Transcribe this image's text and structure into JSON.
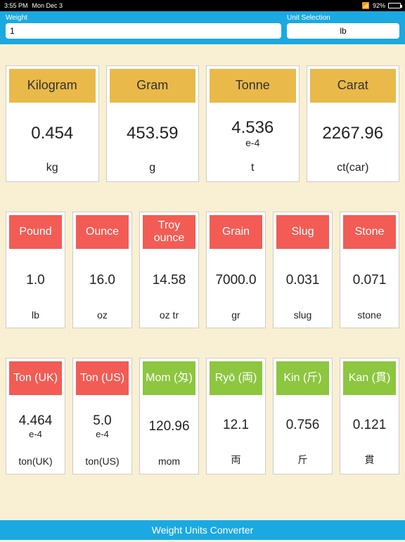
{
  "status": {
    "time": "3:55 PM",
    "date": "Mon Dec 3",
    "battery_pct": "92%"
  },
  "header": {
    "weight_label": "Weight",
    "weight_value": "1",
    "unit_label": "Unit Selection",
    "unit_value": "lb"
  },
  "colors": {
    "yellow": "#e9b949",
    "red": "#f25c54",
    "green": "#8dc63f",
    "header": "#1ba9e1",
    "content_bg": "#f9f0d3"
  },
  "rows": [
    {
      "cols": 4,
      "cards": [
        {
          "title": "Kilogram",
          "value": "0.454",
          "exp": "",
          "unit": "kg",
          "color": "yellow"
        },
        {
          "title": "Gram",
          "value": "453.59",
          "exp": "",
          "unit": "g",
          "color": "yellow"
        },
        {
          "title": "Tonne",
          "value": "4.536",
          "exp": "e-4",
          "unit": "t",
          "color": "yellow"
        },
        {
          "title": "Carat",
          "value": "2267.96",
          "exp": "",
          "unit": "ct(car)",
          "color": "yellow"
        }
      ]
    },
    {
      "cols": 6,
      "cards": [
        {
          "title": "Pound",
          "value": "1.0",
          "exp": "",
          "unit": "lb",
          "color": "red"
        },
        {
          "title": "Ounce",
          "value": "16.0",
          "exp": "",
          "unit": "oz",
          "color": "red"
        },
        {
          "title": "Troy ounce",
          "value": "14.58",
          "exp": "",
          "unit": "oz tr",
          "color": "red"
        },
        {
          "title": "Grain",
          "value": "7000.0",
          "exp": "",
          "unit": "gr",
          "color": "red"
        },
        {
          "title": "Slug",
          "value": "0.031",
          "exp": "",
          "unit": "slug",
          "color": "red"
        },
        {
          "title": "Stone",
          "value": "0.071",
          "exp": "",
          "unit": "stone",
          "color": "red"
        }
      ]
    },
    {
      "cols": 6,
      "cards": [
        {
          "title": "Ton (UK)",
          "value": "4.464",
          "exp": "e-4",
          "unit": "ton(UK)",
          "color": "red"
        },
        {
          "title": "Ton (US)",
          "value": "5.0",
          "exp": "e-4",
          "unit": "ton(US)",
          "color": "red"
        },
        {
          "title": "Mom (匁)",
          "value": "120.96",
          "exp": "",
          "unit": "mom",
          "color": "green"
        },
        {
          "title": "Ryō (両)",
          "value": "12.1",
          "exp": "",
          "unit": "両",
          "color": "green"
        },
        {
          "title": "Kin (斤)",
          "value": "0.756",
          "exp": "",
          "unit": "斤",
          "color": "green"
        },
        {
          "title": "Kan (貫)",
          "value": "0.121",
          "exp": "",
          "unit": "貫",
          "color": "green"
        }
      ]
    }
  ],
  "footer": {
    "title": "Weight Units Converter"
  }
}
